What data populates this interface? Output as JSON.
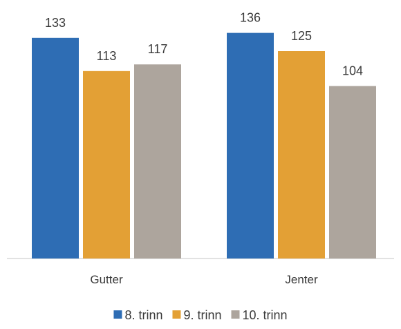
{
  "chart_data": {
    "type": "bar",
    "categories": [
      "Gutter",
      "Jenter"
    ],
    "series": [
      {
        "name": "8. trinn",
        "values": [
          133,
          136
        ],
        "color": "#2e6db4"
      },
      {
        "name": "9. trinn",
        "values": [
          113,
          125
        ],
        "color": "#e3a035"
      },
      {
        "name": "10. trinn",
        "values": [
          117,
          104
        ],
        "color": "#ada59d"
      }
    ],
    "ylim": [
      0,
      140
    ],
    "grid": false,
    "legend_position": "bottom",
    "data_labels": true
  }
}
